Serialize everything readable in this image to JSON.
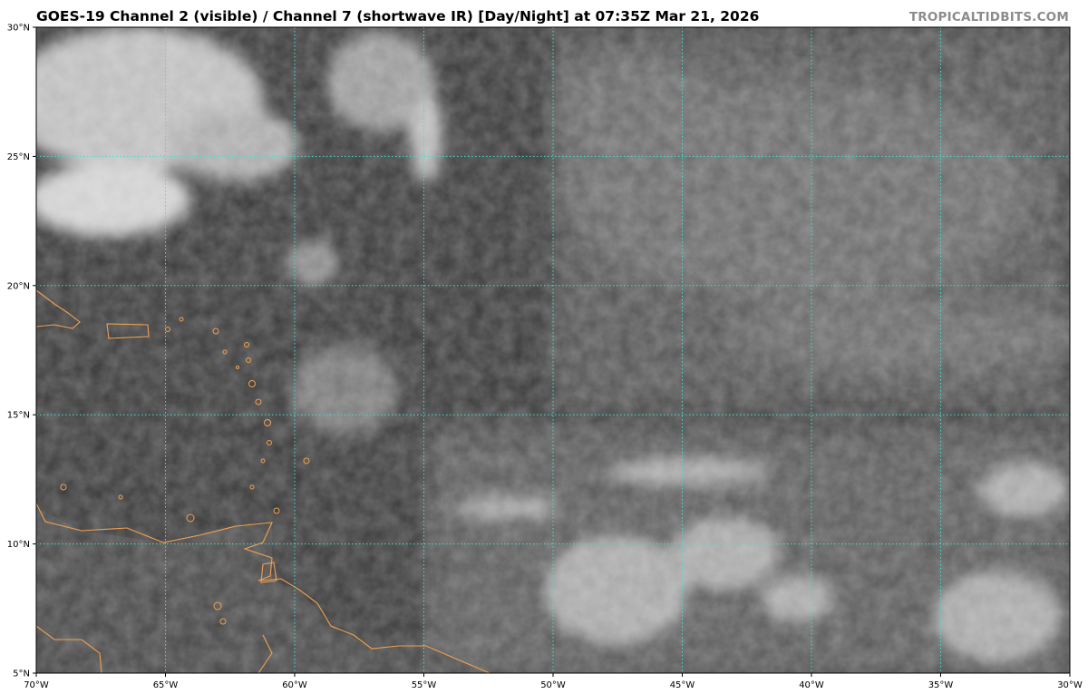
{
  "title": "GOES-19 Channel 2 (visible) / Channel 7 (shortwave IR) [Day/Night] at 07:35Z Mar 21, 2026",
  "watermark": "TROPICALTIDBITS.COM",
  "map": {
    "lon_range": [
      -70,
      -30
    ],
    "lat_range": [
      5,
      30
    ],
    "x_ticks": [
      {
        "value": -70,
        "label": "70°W"
      },
      {
        "value": -65,
        "label": "65°W"
      },
      {
        "value": -60,
        "label": "60°W"
      },
      {
        "value": -55,
        "label": "55°W"
      },
      {
        "value": -50,
        "label": "50°W"
      },
      {
        "value": -45,
        "label": "45°W"
      },
      {
        "value": -40,
        "label": "40°W"
      },
      {
        "value": -35,
        "label": "35°W"
      },
      {
        "value": -30,
        "label": "30°W"
      }
    ],
    "y_ticks": [
      {
        "value": 5,
        "label": "5°N"
      },
      {
        "value": 10,
        "label": "10°N"
      },
      {
        "value": 15,
        "label": "15°N"
      },
      {
        "value": 20,
        "label": "20°N"
      },
      {
        "value": 25,
        "label": "25°N"
      },
      {
        "value": 30,
        "label": "30°N"
      }
    ],
    "gridlines": true,
    "colors": {
      "grid": "#40e0d0",
      "coastline": "#f0a050",
      "ocean_base": "#3a3a3a"
    }
  }
}
